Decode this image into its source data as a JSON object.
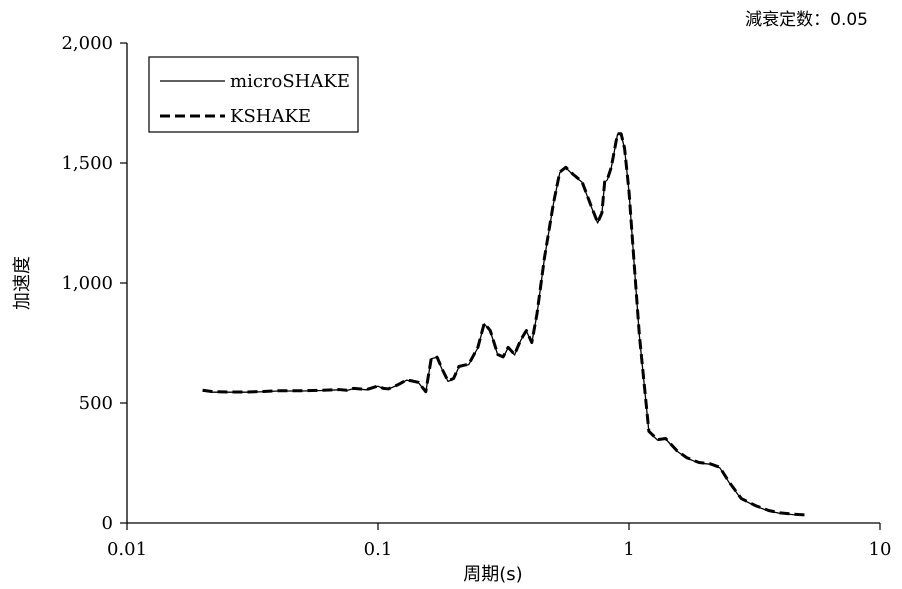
{
  "chart_data": {
    "type": "line",
    "annotation": "減衰定数：0.05",
    "xlabel": "周期(s)",
    "ylabel": "加速度",
    "x_scale": "log",
    "xlim": [
      0.01,
      10
    ],
    "ylim": [
      0,
      2000
    ],
    "x_ticks": [
      0.01,
      0.1,
      1,
      10
    ],
    "x_tick_labels": [
      "0.01",
      "0.1",
      "1",
      "10"
    ],
    "y_ticks": [
      0,
      500,
      1000,
      1500,
      2000
    ],
    "y_tick_labels": [
      "0",
      "500",
      "1,000",
      "1,500",
      "2,000"
    ],
    "grid": false,
    "legend_position": "top-left",
    "series": [
      {
        "name": "microSHAKE",
        "style": "solid",
        "color": "#000000",
        "x": [
          0.02,
          0.022,
          0.025,
          0.03,
          0.035,
          0.04,
          0.05,
          0.06,
          0.07,
          0.075,
          0.08,
          0.09,
          0.1,
          0.105,
          0.11,
          0.12,
          0.13,
          0.138,
          0.145,
          0.155,
          0.163,
          0.172,
          0.18,
          0.19,
          0.2,
          0.21,
          0.23,
          0.25,
          0.265,
          0.28,
          0.3,
          0.315,
          0.33,
          0.35,
          0.37,
          0.39,
          0.41,
          0.43,
          0.46,
          0.5,
          0.53,
          0.56,
          0.6,
          0.65,
          0.7,
          0.75,
          0.78,
          0.8,
          0.82,
          0.85,
          0.9,
          0.93,
          0.96,
          1.0,
          1.05,
          1.1,
          1.2,
          1.3,
          1.4,
          1.55,
          1.7,
          1.9,
          2.1,
          2.3,
          2.5,
          2.8,
          3.2,
          3.6,
          4.0,
          4.5,
          5.0
        ],
        "y": [
          550,
          545,
          545,
          545,
          547,
          550,
          550,
          552,
          555,
          552,
          560,
          555,
          570,
          560,
          558,
          575,
          595,
          590,
          585,
          545,
          685,
          690,
          640,
          590,
          600,
          650,
          660,
          730,
          830,
          800,
          700,
          690,
          730,
          700,
          760,
          800,
          750,
          870,
          1100,
          1330,
          1460,
          1480,
          1450,
          1420,
          1330,
          1250,
          1290,
          1420,
          1430,
          1480,
          1620,
          1620,
          1560,
          1380,
          1070,
          780,
          380,
          345,
          350,
          300,
          270,
          250,
          245,
          230,
          170,
          100,
          70,
          50,
          40,
          35,
          32
        ]
      },
      {
        "name": "KSHAKE",
        "style": "dashed",
        "color": "#000000",
        "x": [
          0.02,
          0.022,
          0.025,
          0.03,
          0.035,
          0.04,
          0.05,
          0.06,
          0.07,
          0.075,
          0.08,
          0.09,
          0.1,
          0.105,
          0.11,
          0.12,
          0.13,
          0.138,
          0.145,
          0.155,
          0.163,
          0.172,
          0.18,
          0.19,
          0.2,
          0.21,
          0.23,
          0.25,
          0.265,
          0.28,
          0.3,
          0.315,
          0.33,
          0.35,
          0.37,
          0.39,
          0.41,
          0.43,
          0.46,
          0.5,
          0.53,
          0.56,
          0.6,
          0.65,
          0.7,
          0.75,
          0.78,
          0.8,
          0.82,
          0.85,
          0.9,
          0.93,
          0.96,
          1.0,
          1.05,
          1.1,
          1.2,
          1.3,
          1.4,
          1.55,
          1.7,
          1.9,
          2.1,
          2.3,
          2.5,
          2.8,
          3.2,
          3.6,
          4.0,
          4.5,
          5.0
        ],
        "y": [
          553,
          547,
          546,
          546,
          548,
          551,
          551,
          553,
          556,
          553,
          561,
          556,
          571,
          561,
          559,
          576,
          596,
          591,
          586,
          547,
          686,
          691,
          642,
          592,
          602,
          652,
          662,
          732,
          832,
          802,
          702,
          692,
          732,
          702,
          762,
          802,
          752,
          872,
          1102,
          1332,
          1462,
          1482,
          1452,
          1422,
          1332,
          1252,
          1292,
          1422,
          1432,
          1482,
          1622,
          1622,
          1562,
          1382,
          1072,
          782,
          382,
          347,
          352,
          302,
          272,
          252,
          247,
          232,
          172,
          102,
          72,
          52,
          42,
          37,
          34
        ]
      }
    ]
  }
}
